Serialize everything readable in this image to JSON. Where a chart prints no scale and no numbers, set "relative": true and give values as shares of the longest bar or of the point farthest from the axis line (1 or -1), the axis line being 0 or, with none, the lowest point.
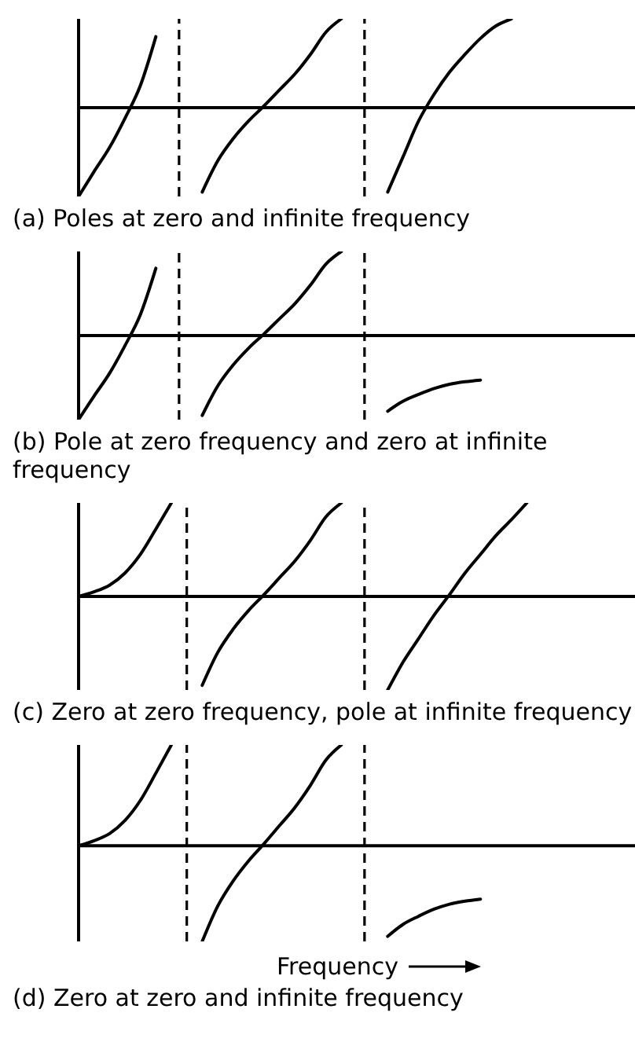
{
  "chart_data": [
    {
      "type": "line",
      "title": "(a) Poles at zero and infinite frequency",
      "relative": true,
      "marker": "none",
      "categories": [
        null,
        null,
        null,
        null,
        null,
        null,
        null,
        null,
        null,
        null,
        null,
        null,
        null,
        null,
        null,
        null,
        null,
        null,
        null,
        null,
        null,
        null,
        null,
        null,
        null,
        null,
        null,
        null,
        null,
        null,
        null,
        null,
        null,
        null,
        null,
        null,
        null
      ],
      "series": [
        {
          "color": "#000000",
          "values": [
            -1,
            -0.72,
            -0.45,
            -0.12,
            0.25,
            0.8,
            null,
            null,
            null,
            null,
            null,
            null,
            null,
            null,
            null,
            null,
            null,
            null,
            null,
            null,
            null,
            null,
            null,
            null,
            null,
            null,
            null,
            null,
            null,
            null,
            null,
            null,
            null,
            null,
            null,
            null,
            null
          ]
        },
        {
          "color": "#000000",
          "values": [
            null,
            null,
            null,
            null,
            null,
            null,
            null,
            null,
            -0.95,
            -0.6,
            -0.35,
            -0.15,
            0.02,
            0.2,
            0.38,
            0.6,
            0.85,
            1,
            null,
            null,
            null,
            null,
            null,
            null,
            null,
            null,
            null,
            null,
            null,
            null,
            null,
            null,
            null,
            null,
            null,
            null,
            null
          ]
        },
        {
          "color": "#000000",
          "values": [
            null,
            null,
            null,
            null,
            null,
            null,
            null,
            null,
            null,
            null,
            null,
            null,
            null,
            null,
            null,
            null,
            null,
            null,
            null,
            null,
            -0.95,
            -0.55,
            -0.15,
            0.15,
            0.4,
            0.6,
            0.78,
            0.92,
            1,
            null,
            null,
            null,
            null,
            null,
            null,
            null,
            null
          ]
        }
      ],
      "line_style": "solid"
    },
    {
      "type": "line",
      "title": "(b) Pole at  zero frequency and zero at infinite frequency",
      "relative": true,
      "marker": "none",
      "categories": [
        null,
        null,
        null,
        null,
        null,
        null,
        null,
        null,
        null,
        null,
        null,
        null,
        null,
        null,
        null,
        null,
        null,
        null,
        null,
        null,
        null,
        null,
        null,
        null,
        null,
        null,
        null,
        null,
        null,
        null,
        null,
        null,
        null,
        null,
        null,
        null,
        null
      ],
      "series": [
        {
          "color": "#000000",
          "values": [
            -1,
            -0.72,
            -0.45,
            -0.12,
            0.25,
            0.8,
            null,
            null,
            null,
            null,
            null,
            null,
            null,
            null,
            null,
            null,
            null,
            null,
            null,
            null,
            null,
            null,
            null,
            null,
            null,
            null,
            null,
            null,
            null,
            null,
            null,
            null,
            null,
            null,
            null,
            null,
            null
          ]
        },
        {
          "color": "#000000",
          "values": [
            null,
            null,
            null,
            null,
            null,
            null,
            null,
            null,
            -0.95,
            -0.6,
            -0.35,
            -0.15,
            0.02,
            0.2,
            0.38,
            0.6,
            0.85,
            1,
            null,
            null,
            null,
            null,
            null,
            null,
            null,
            null,
            null,
            null,
            null,
            null,
            null,
            null,
            null,
            null,
            null,
            null,
            null
          ]
        },
        {
          "color": "#000000",
          "values": [
            null,
            null,
            null,
            null,
            null,
            null,
            null,
            null,
            null,
            null,
            null,
            null,
            null,
            null,
            null,
            null,
            null,
            null,
            null,
            null,
            -0.9,
            -0.78,
            -0.7,
            -0.63,
            -0.58,
            -0.55,
            -0.53,
            null,
            null,
            null,
            null,
            null,
            null,
            null,
            null,
            null,
            null
          ]
        }
      ],
      "line_style": "solid"
    },
    {
      "type": "line",
      "title": "(c) Zero at zero frequency, pole at infinite frequency",
      "relative": true,
      "marker": "none",
      "categories": [
        null,
        null,
        null,
        null,
        null,
        null,
        null,
        null,
        null,
        null,
        null,
        null,
        null,
        null,
        null,
        null,
        null,
        null,
        null,
        null,
        null,
        null,
        null,
        null,
        null,
        null,
        null,
        null,
        null,
        null,
        null,
        null,
        null,
        null,
        null,
        null,
        null
      ],
      "series": [
        {
          "color": "#000000",
          "values": [
            0,
            0.05,
            0.12,
            0.25,
            0.45,
            0.72,
            1,
            null,
            null,
            null,
            null,
            null,
            null,
            null,
            null,
            null,
            null,
            null,
            null,
            null,
            null,
            null,
            null,
            null,
            null,
            null,
            null,
            null,
            null,
            null,
            null,
            null,
            null,
            null,
            null,
            null,
            null
          ]
        },
        {
          "color": "#000000",
          "values": [
            null,
            null,
            null,
            null,
            null,
            null,
            null,
            null,
            -0.95,
            -0.6,
            -0.35,
            -0.15,
            0.02,
            0.2,
            0.38,
            0.6,
            0.85,
            1,
            null,
            null,
            null,
            null,
            null,
            null,
            null,
            null,
            null,
            null,
            null,
            null,
            null,
            null,
            null,
            null,
            null,
            null,
            null
          ]
        },
        {
          "color": "#000000",
          "values": [
            null,
            null,
            null,
            null,
            null,
            null,
            null,
            null,
            null,
            null,
            null,
            null,
            null,
            null,
            null,
            null,
            null,
            null,
            null,
            null,
            -1,
            -0.7,
            -0.45,
            -0.2,
            0.02,
            0.25,
            0.45,
            0.65,
            0.82,
            1,
            null,
            null,
            null,
            null,
            null,
            null,
            null
          ]
        }
      ],
      "line_style": "solid"
    },
    {
      "type": "line",
      "title": "(d) Zero at zero and infinite frequency",
      "xlabel": "Frequency",
      "relative": true,
      "marker": "none",
      "categories": [
        null,
        null,
        null,
        null,
        null,
        null,
        null,
        null,
        null,
        null,
        null,
        null,
        null,
        null,
        null,
        null,
        null,
        null,
        null,
        null,
        null,
        null,
        null,
        null,
        null,
        null,
        null,
        null,
        null,
        null,
        null,
        null,
        null,
        null,
        null,
        null,
        null
      ],
      "series": [
        {
          "color": "#000000",
          "values": [
            0,
            0.05,
            0.12,
            0.25,
            0.45,
            0.72,
            1,
            null,
            null,
            null,
            null,
            null,
            null,
            null,
            null,
            null,
            null,
            null,
            null,
            null,
            null,
            null,
            null,
            null,
            null,
            null,
            null,
            null,
            null,
            null,
            null,
            null,
            null,
            null,
            null,
            null,
            null
          ]
        },
        {
          "color": "#000000",
          "values": [
            null,
            null,
            null,
            null,
            null,
            null,
            null,
            null,
            -0.95,
            -0.6,
            -0.35,
            -0.15,
            0.02,
            0.2,
            0.38,
            0.6,
            0.85,
            1,
            null,
            null,
            null,
            null,
            null,
            null,
            null,
            null,
            null,
            null,
            null,
            null,
            null,
            null,
            null,
            null,
            null,
            null,
            null
          ]
        },
        {
          "color": "#000000",
          "values": [
            null,
            null,
            null,
            null,
            null,
            null,
            null,
            null,
            null,
            null,
            null,
            null,
            null,
            null,
            null,
            null,
            null,
            null,
            null,
            null,
            -0.9,
            -0.78,
            -0.7,
            -0.63,
            -0.58,
            -0.55,
            -0.53,
            null,
            null,
            null,
            null,
            null,
            null,
            null,
            null,
            null,
            null
          ]
        }
      ],
      "line_style": "solid"
    }
  ]
}
